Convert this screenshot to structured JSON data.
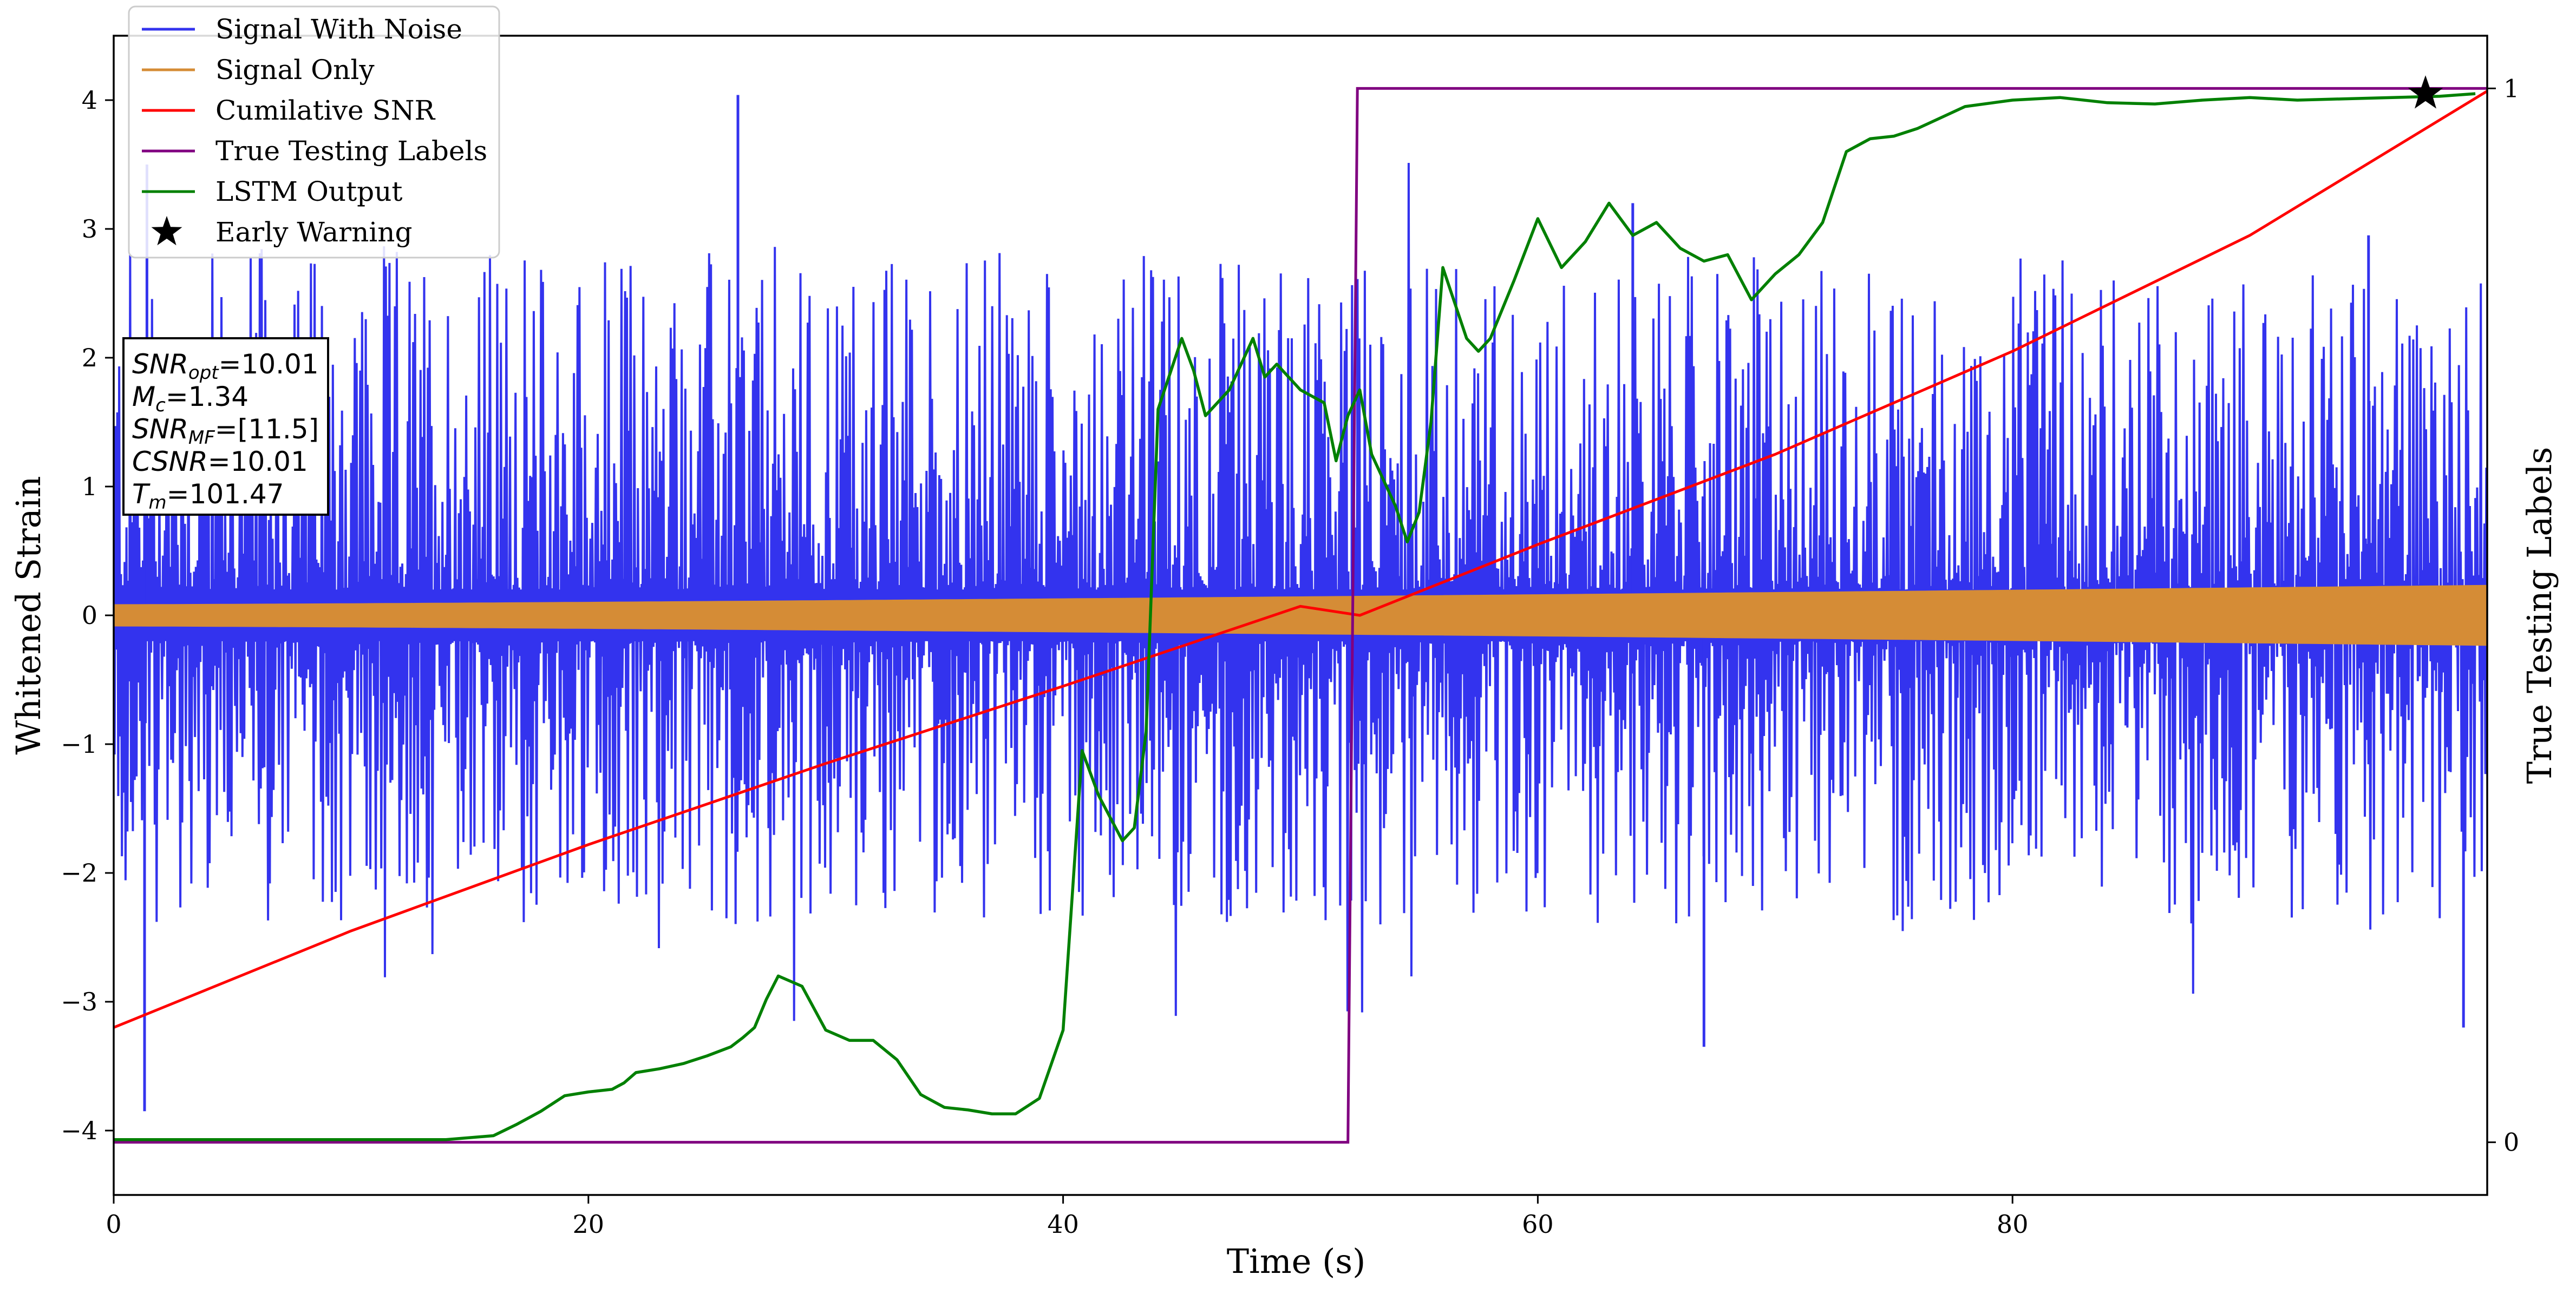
{
  "chart_data": {
    "type": "line",
    "xlabel": "Time (s)",
    "ylabel": "Whitened Strain",
    "ylabel_right": "True Testing Labels",
    "xlim": [
      0,
      100
    ],
    "ylim": [
      -4.5,
      4.5
    ],
    "ylim_right": [
      -0.05,
      1.05
    ],
    "x_ticks": [
      0,
      20,
      40,
      60,
      80
    ],
    "y_ticks": [
      -4,
      -3,
      -2,
      -1,
      0,
      1,
      2,
      3,
      4
    ],
    "y_tick_labels": [
      "−4",
      "−3",
      "−2",
      "−1",
      "0",
      "1",
      "2",
      "3",
      "4"
    ],
    "y_right_ticks": [
      0,
      1
    ],
    "grid": false,
    "legend_position": "top-left",
    "series": [
      {
        "name": "Signal With Noise",
        "color": "#3333ee",
        "axis": "left",
        "style": "noise",
        "envelope_min": [
          -2.0,
          -2.0
        ],
        "envelope_max": [
          2.5,
          2.3
        ],
        "extremes": [
          [
            1.3,
            -3.85
          ],
          [
            1.4,
            3.5
          ],
          [
            26.3,
            4.04
          ],
          [
            64,
            3.2
          ],
          [
            67,
            -3.35
          ],
          [
            95,
            2.95
          ],
          [
            99,
            -3.2
          ]
        ]
      },
      {
        "name": "Signal Only",
        "color": "#d58c36",
        "axis": "left",
        "style": "chirp",
        "amplitude_start": 0.08,
        "amplitude_end": 0.23
      },
      {
        "name": "Cumilative SNR",
        "color": "#ff0000",
        "axis": "left",
        "x": [
          0,
          10,
          20,
          30,
          40,
          50,
          52.5,
          60,
          70,
          80,
          90,
          100
        ],
        "values": [
          -3.2,
          -2.45,
          -1.78,
          -1.15,
          -0.55,
          0.07,
          0.0,
          0.55,
          1.25,
          2.05,
          2.95,
          4.07
        ]
      },
      {
        "name": "True Testing Labels",
        "color": "#800080",
        "axis": "right",
        "x": [
          0,
          52.0,
          52.4,
          100
        ],
        "values": [
          0,
          0,
          1,
          1
        ]
      },
      {
        "name": "LSTM Output",
        "color": "#008000",
        "axis": "left",
        "x": [
          0,
          14,
          16,
          17,
          18,
          19,
          20,
          21,
          21.5,
          22,
          23,
          24,
          25,
          26,
          26.5,
          27,
          27.5,
          28,
          29,
          30,
          31,
          32,
          33,
          34,
          35,
          36,
          37,
          38,
          39,
          40,
          40.8,
          41.5,
          42.5,
          43,
          43.5,
          44,
          45,
          45.5,
          46,
          47,
          48,
          48.5,
          49,
          50,
          51,
          51.5,
          52,
          52.5,
          53,
          54,
          54.5,
          55,
          55.5,
          56,
          57,
          57.5,
          58,
          59,
          60,
          61,
          62,
          63,
          64,
          65,
          66,
          67,
          68,
          69,
          70,
          71,
          72,
          73,
          74,
          75,
          76,
          78,
          80,
          82,
          84,
          86,
          88,
          90,
          92,
          94,
          96,
          98,
          99.5
        ],
        "values": [
          -4.07,
          -4.07,
          -4.04,
          -3.95,
          -3.85,
          -3.73,
          -3.7,
          -3.68,
          -3.63,
          -3.55,
          -3.52,
          -3.48,
          -3.42,
          -3.35,
          -3.28,
          -3.2,
          -2.98,
          -2.8,
          -2.88,
          -3.22,
          -3.3,
          -3.3,
          -3.45,
          -3.72,
          -3.82,
          -3.84,
          -3.87,
          -3.87,
          -3.75,
          -3.22,
          -1.05,
          -1.4,
          -1.75,
          -1.65,
          -0.9,
          1.6,
          2.15,
          1.9,
          1.55,
          1.75,
          2.15,
          1.85,
          1.95,
          1.75,
          1.65,
          1.2,
          1.55,
          1.75,
          1.25,
          0.85,
          0.57,
          0.8,
          1.5,
          2.7,
          2.15,
          2.05,
          2.15,
          2.6,
          3.08,
          2.7,
          2.9,
          3.2,
          2.95,
          3.05,
          2.85,
          2.75,
          2.8,
          2.45,
          2.65,
          2.8,
          3.05,
          3.6,
          3.7,
          3.72,
          3.78,
          3.95,
          4.0,
          4.02,
          3.98,
          3.97,
          4.0,
          4.02,
          4.0,
          4.01,
          4.02,
          4.03,
          4.05
        ]
      },
      {
        "name": "Early Warning",
        "color": "#000000",
        "axis": "left",
        "style": "star-marker",
        "x": [
          97.4
        ],
        "values": [
          4.05
        ]
      }
    ],
    "annotation_lines": [
      {
        "sym": "SNR",
        "sub": "opt",
        "text": "=10.01"
      },
      {
        "sym": "M",
        "sub": "c",
        "text": "=1.34"
      },
      {
        "sym": "SNR",
        "sub": "MF",
        "text": "=[11.5]"
      },
      {
        "sym": "CSNR",
        "sub": "",
        "text": "=10.01"
      },
      {
        "sym": "T",
        "sub": "m",
        "text": "=101.47"
      }
    ]
  }
}
